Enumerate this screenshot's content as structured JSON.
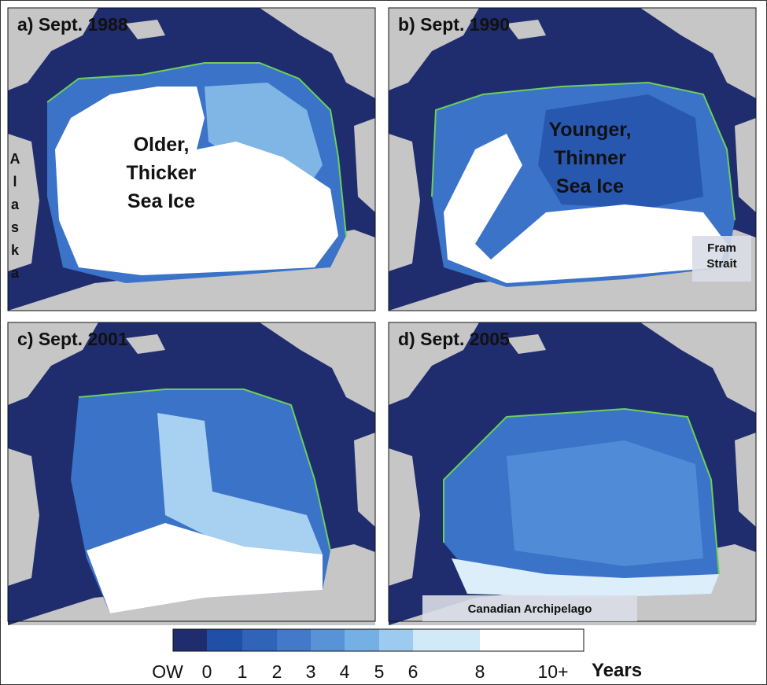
{
  "panels": [
    {
      "label": "a) Sept. 1988",
      "annotations": [
        {
          "lines": [
            "Older,",
            "Thicker",
            "Sea Ice"
          ]
        }
      ],
      "side_label": "Alaska"
    },
    {
      "label": "b) Sept. 1990",
      "annotations": [
        {
          "lines": [
            "Younger,",
            "Thinner",
            "Sea Ice"
          ]
        }
      ],
      "box_label": [
        "Fram",
        "Strait"
      ]
    },
    {
      "label": "c) Sept. 2001"
    },
    {
      "label": "d) Sept. 2005",
      "box_label": [
        "Canadian Archipelago"
      ]
    }
  ],
  "colorbar": {
    "colors": [
      "#1f2d6e",
      "#1f4fa6",
      "#2f64b9",
      "#4279c9",
      "#5892d7",
      "#74b0e4",
      "#9ccbef",
      "#d2e9f7",
      "#ffffff"
    ],
    "labels": [
      "OW",
      "0",
      "1",
      "2",
      "3",
      "4",
      "5",
      "6",
      "8",
      "10+"
    ],
    "unit": "Years"
  }
}
